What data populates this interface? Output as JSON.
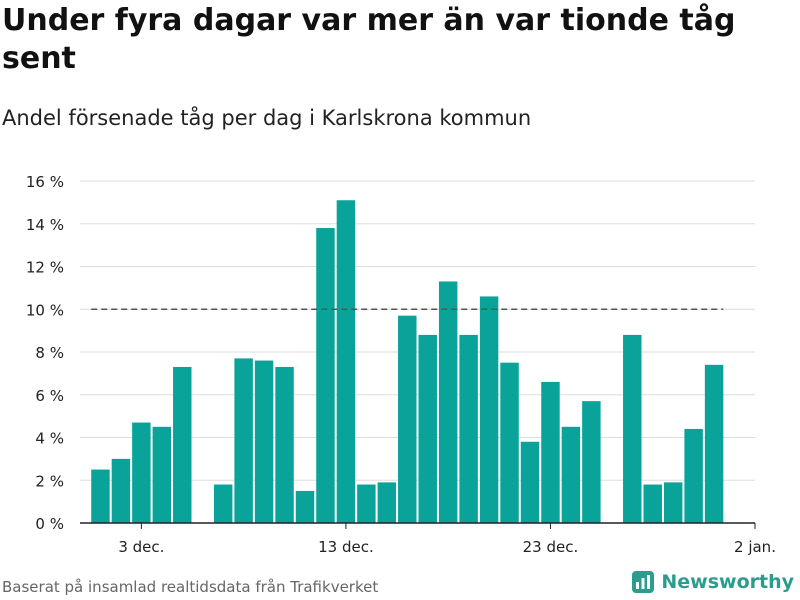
{
  "header": {
    "title": "Under fyra dagar var mer än var tionde tåg sent",
    "subtitle": "Andel försenade tåg per dag i Karlskrona kommun"
  },
  "footer": {
    "source": "Baserat på insamlad realtidsdata från Trafikverket",
    "brand": "Newsworthy"
  },
  "colors": {
    "bar": "#0aa39a",
    "reference": "#555555",
    "grid": "#dddddd",
    "brand": "#2a9d8f"
  },
  "chart_data": {
    "type": "bar",
    "x_unit": "date",
    "x": [
      "2023-12-01",
      "2023-12-02",
      "2023-12-03",
      "2023-12-04",
      "2023-12-05",
      "2023-12-07",
      "2023-12-08",
      "2023-12-09",
      "2023-12-10",
      "2023-12-11",
      "2023-12-12",
      "2023-12-13",
      "2023-12-14",
      "2023-12-15",
      "2023-12-16",
      "2023-12-17",
      "2023-12-18",
      "2023-12-19",
      "2023-12-20",
      "2023-12-21",
      "2023-12-22",
      "2023-12-23",
      "2023-12-24",
      "2023-12-25",
      "2023-12-27",
      "2023-12-28",
      "2023-12-29",
      "2023-12-30",
      "2023-12-31"
    ],
    "values": [
      2.5,
      3.0,
      4.7,
      4.5,
      7.3,
      1.8,
      7.7,
      7.6,
      7.3,
      1.5,
      13.8,
      15.1,
      1.8,
      1.9,
      9.7,
      8.8,
      11.3,
      8.8,
      10.6,
      7.5,
      3.8,
      6.6,
      4.5,
      5.7,
      8.8,
      1.8,
      1.9,
      4.4,
      7.4
    ],
    "reference_line": {
      "value": 10,
      "style": "dashed"
    },
    "ylim": [
      0,
      16
    ],
    "y_ticks": [
      0,
      2,
      4,
      6,
      8,
      10,
      12,
      14,
      16
    ],
    "y_tick_labels": [
      "0 %",
      "2 %",
      "4 %",
      "6 %",
      "8 %",
      "10 %",
      "12 %",
      "14 %",
      "16 %"
    ],
    "x_ticks": [
      "2023-12-03",
      "2023-12-13",
      "2023-12-23",
      "2024-01-02"
    ],
    "x_tick_labels": [
      "3 dec.",
      "13 dec.",
      "23 dec.",
      "2 jan."
    ],
    "xlim": [
      "2023-11-30",
      "2024-01-02"
    ],
    "grid": true,
    "legend": "none"
  }
}
